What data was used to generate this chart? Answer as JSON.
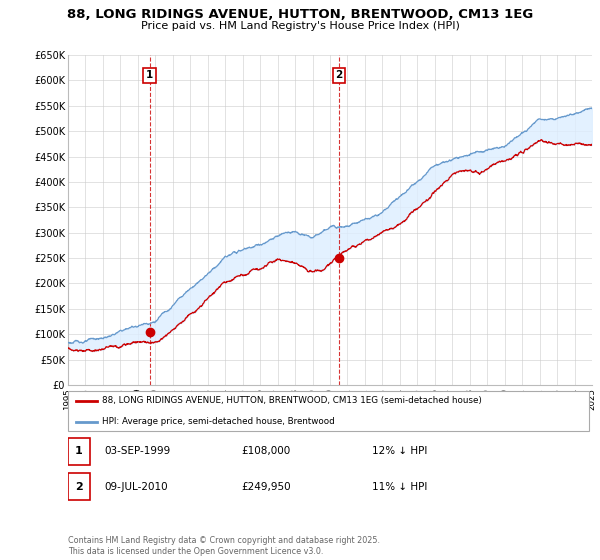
{
  "title": "88, LONG RIDINGS AVENUE, HUTTON, BRENTWOOD, CM13 1EG",
  "subtitle": "Price paid vs. HM Land Registry's House Price Index (HPI)",
  "legend_line1": "88, LONG RIDINGS AVENUE, HUTTON, BRENTWOOD, CM13 1EG (semi-detached house)",
  "legend_line2": "HPI: Average price, semi-detached house, Brentwood",
  "transaction1_date": "03-SEP-1999",
  "transaction1_price": "£108,000",
  "transaction1_hpi": "12% ↓ HPI",
  "transaction2_date": "09-JUL-2010",
  "transaction2_price": "£249,950",
  "transaction2_hpi": "11% ↓ HPI",
  "footer": "Contains HM Land Registry data © Crown copyright and database right 2025.\nThis data is licensed under the Open Government Licence v3.0.",
  "ylim_min": 0,
  "ylim_max": 650000,
  "year_start": 1995,
  "year_end": 2025,
  "transaction1_year": 1999.67,
  "transaction1_value": 108000,
  "transaction2_year": 2010.52,
  "transaction2_value": 249950,
  "red_color": "#cc0000",
  "blue_color": "#6699cc",
  "fill_color": "#ddeeff",
  "vline_color": "#cc0000",
  "bg_color": "#ffffff",
  "grid_color": "#cccccc"
}
